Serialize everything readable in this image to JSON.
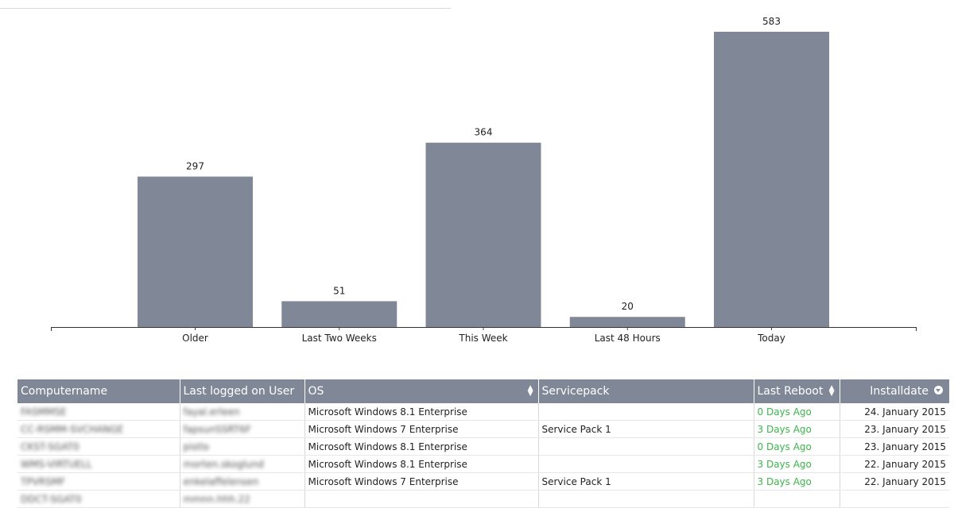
{
  "chart_data": {
    "type": "bar",
    "categories": [
      "Older",
      "Last Two Weeks",
      "This Week",
      "Last 48 Hours",
      "Today"
    ],
    "values": [
      297,
      51,
      364,
      20,
      583
    ],
    "title": "",
    "xlabel": "",
    "ylabel": "",
    "ylim": [
      0,
      583
    ],
    "grid": false,
    "bar_color": "#808897",
    "data_labels": true
  },
  "table": {
    "columns": [
      "Computername",
      "Last logged on User",
      "OS",
      "Servicepack",
      "Last Reboot",
      "Installdate"
    ],
    "rows": [
      [
        "FASMMSE",
        "fayal.erleen",
        "Microsoft Windows 8.1 Enterprise",
        "",
        "0 Days Ago",
        "24. January 2015"
      ],
      [
        "CC-RSMM-SVCHANGE",
        "fapsunSSRT6F",
        "Microsoft Windows 7 Enterprise",
        "Service Pack 1",
        "3 Days Ago",
        "23. January 2015"
      ],
      [
        "CKST-SGAT0",
        "pistlo",
        "Microsoft Windows 8.1 Enterprise",
        "",
        "0 Days Ago",
        "23. January 2015"
      ],
      [
        "WMS-VIRTUELL",
        "morten.skoglund",
        "Microsoft Windows 8.1 Enterprise",
        "",
        "3 Days Ago",
        "22. January 2015"
      ],
      [
        "TPVRSMF",
        "enkelaffelensen",
        "Microsoft Windows 7 Enterprise",
        "Service Pack 1",
        "3 Days Ago",
        "22. January 2015"
      ],
      [
        "DDCT-SGAT0",
        "mmnn.hhh.22",
        "",
        "",
        "",
        ""
      ]
    ]
  },
  "colors": {
    "header_bg": "#808897",
    "bar": "#808897",
    "reboot_green": "#3cb44b"
  }
}
